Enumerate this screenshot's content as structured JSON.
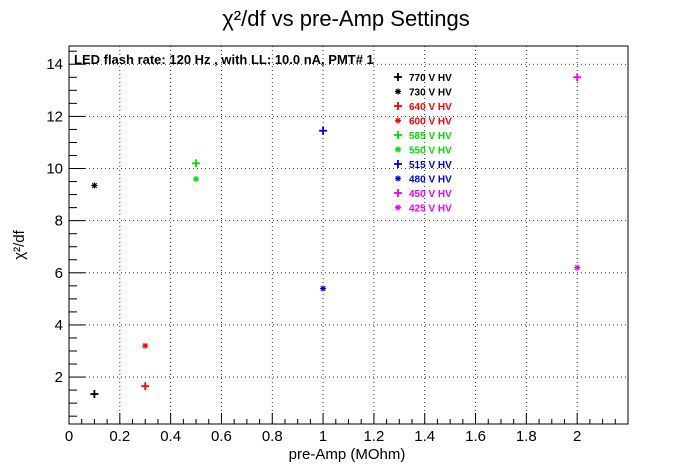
{
  "chart_data": {
    "type": "scatter",
    "title": "χ²/df vs pre-Amp Settings",
    "xlabel": "pre-Amp (MOhm)",
    "ylabel": "χ²/df",
    "annotation": "LED flash rate: 120 Hz , with LL: 10.0 nA, PMT# 1",
    "xlim": [
      0,
      2.2
    ],
    "ylim": [
      0.2,
      14.7
    ],
    "grid": true,
    "legend_position": "top-right",
    "x_ticks": [
      "0",
      "0.2",
      "0.4",
      "0.6",
      "0.8",
      "1",
      "1.2",
      "1.4",
      "1.6",
      "1.8",
      "2"
    ],
    "y_ticks": [
      "2",
      "4",
      "6",
      "8",
      "10",
      "12",
      "14"
    ],
    "series": [
      {
        "name": "770 V HV",
        "color": "#000000",
        "marker": "plus",
        "x": [
          0.1
        ],
        "y": [
          1.35
        ]
      },
      {
        "name": "730 V HV",
        "color": "#000000",
        "marker": "star",
        "x": [
          0.1
        ],
        "y": [
          9.35
        ]
      },
      {
        "name": "640 V HV",
        "color": "#ff0000",
        "marker": "plus",
        "x": [
          0.3
        ],
        "y": [
          1.65
        ]
      },
      {
        "name": "600 V HV",
        "color": "#ff0000",
        "marker": "star",
        "x": [
          0.3
        ],
        "y": [
          3.2
        ]
      },
      {
        "name": "585 V HV",
        "color": "#00dd00",
        "marker": "plus",
        "x": [
          0.5
        ],
        "y": [
          10.2
        ]
      },
      {
        "name": "550 V HV",
        "color": "#00dd00",
        "marker": "star",
        "x": [
          0.5
        ],
        "y": [
          9.6
        ]
      },
      {
        "name": "515 V HV",
        "color": "#0000ee",
        "marker": "plus",
        "x": [
          1.0
        ],
        "y": [
          11.45
        ]
      },
      {
        "name": "480 V HV",
        "color": "#0000ee",
        "marker": "star",
        "x": [
          1.0
        ],
        "y": [
          5.4
        ]
      },
      {
        "name": "450 V HV",
        "color": "#ee00ee",
        "marker": "plus",
        "x": [
          2.0
        ],
        "y": [
          13.5
        ]
      },
      {
        "name": "425 V HV",
        "color": "#ee00ee",
        "marker": "star",
        "x": [
          2.0
        ],
        "y": [
          6.2
        ]
      }
    ]
  }
}
